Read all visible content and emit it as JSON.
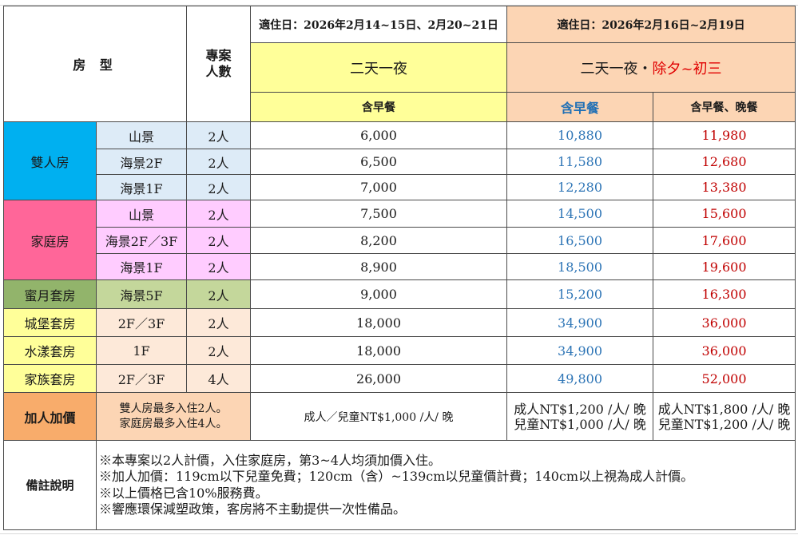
{
  "header": {
    "room_type": "房 型",
    "project_people_l1": "專案",
    "project_people_l2": "人數",
    "period1": "適住日：2026年2月14~15日、2月20~21日",
    "period2": "適住日：2026年2月16日~2月19日",
    "plan1": "二天一夜",
    "plan2_prefix": "二天一夜・",
    "plan2_highlight": "除夕~初三",
    "meal1": "含早餐",
    "meal2": "含早餐",
    "meal3": "含早餐、晚餐"
  },
  "groups": [
    {
      "name": "雙人房",
      "rows": [
        {
          "view": "山景",
          "people": "2人",
          "p1": "6,000",
          "p2": "10,880",
          "p3": "11,980"
        },
        {
          "view": "海景2F",
          "people": "2人",
          "p1": "6,500",
          "p2": "11,580",
          "p3": "12,680"
        },
        {
          "view": "海景1F",
          "people": "2人",
          "p1": "7,000",
          "p2": "12,280",
          "p3": "13,380"
        }
      ]
    },
    {
      "name": "家庭房",
      "rows": [
        {
          "view": "山景",
          "people": "2人",
          "p1": "7,500",
          "p2": "14,500",
          "p3": "15,600"
        },
        {
          "view": "海景2F／3F",
          "people": "2人",
          "p1": "8,200",
          "p2": "16,500",
          "p3": "17,600"
        },
        {
          "view": "海景1F",
          "people": "2人",
          "p1": "8,900",
          "p2": "18,500",
          "p3": "19,600"
        }
      ]
    },
    {
      "name": "蜜月套房",
      "rows": [
        {
          "view": "海景5F",
          "people": "2人",
          "p1": "9,000",
          "p2": "15,200",
          "p3": "16,300"
        }
      ]
    },
    {
      "name": "城堡套房",
      "rows": [
        {
          "view": "2F／3F",
          "people": "2人",
          "p1": "18,000",
          "p2": "34,900",
          "p3": "36,000"
        }
      ]
    },
    {
      "name": "水漾套房",
      "rows": [
        {
          "view": "1F",
          "people": "2人",
          "p1": "18,000",
          "p2": "34,900",
          "p3": "36,000"
        }
      ]
    },
    {
      "name": "家族套房",
      "rows": [
        {
          "view": "2F／3F",
          "people": "4人",
          "p1": "26,000",
          "p2": "49,800",
          "p3": "52,000"
        }
      ]
    }
  ],
  "addon": {
    "label": "加人加價",
    "note_l1": "雙人房最多入住2人。",
    "note_l2": "家庭房最多入住4人。",
    "price1": "成人／兒童NT$1,000 /人/ 晚",
    "price2_l1": "成人NT$1,200 /人/ 晚",
    "price2_l2": "兒童NT$1,000 /人/ 晚",
    "price3_l1": "成人NT$1,800 /人/ 晚",
    "price3_l2": "兒童NT$1,200 /人/ 晚"
  },
  "remarks": {
    "label": "備註說明",
    "lines": [
      "※本專案以2人計價，入住家庭房，第3~4人均須加價入住。",
      "※加人加價：119cm以下兒童免費；120cm（含）~139cm以兒童價計費；140cm以上視為成人計價。",
      "※以上價格已含10%服務費。",
      "※響應環保減塑政策，客房將不主動提供一次性備品。"
    ]
  },
  "colors": {
    "period1_bg": "#ffff99",
    "period2_bg": "#fcd5b4",
    "double_room": "#00b0f0",
    "family_room": "#ff6699",
    "honeymoon": "#92b46b",
    "addon": "#f8ac6b",
    "price_blue": "#2e75b6",
    "price_red": "#c00000"
  }
}
